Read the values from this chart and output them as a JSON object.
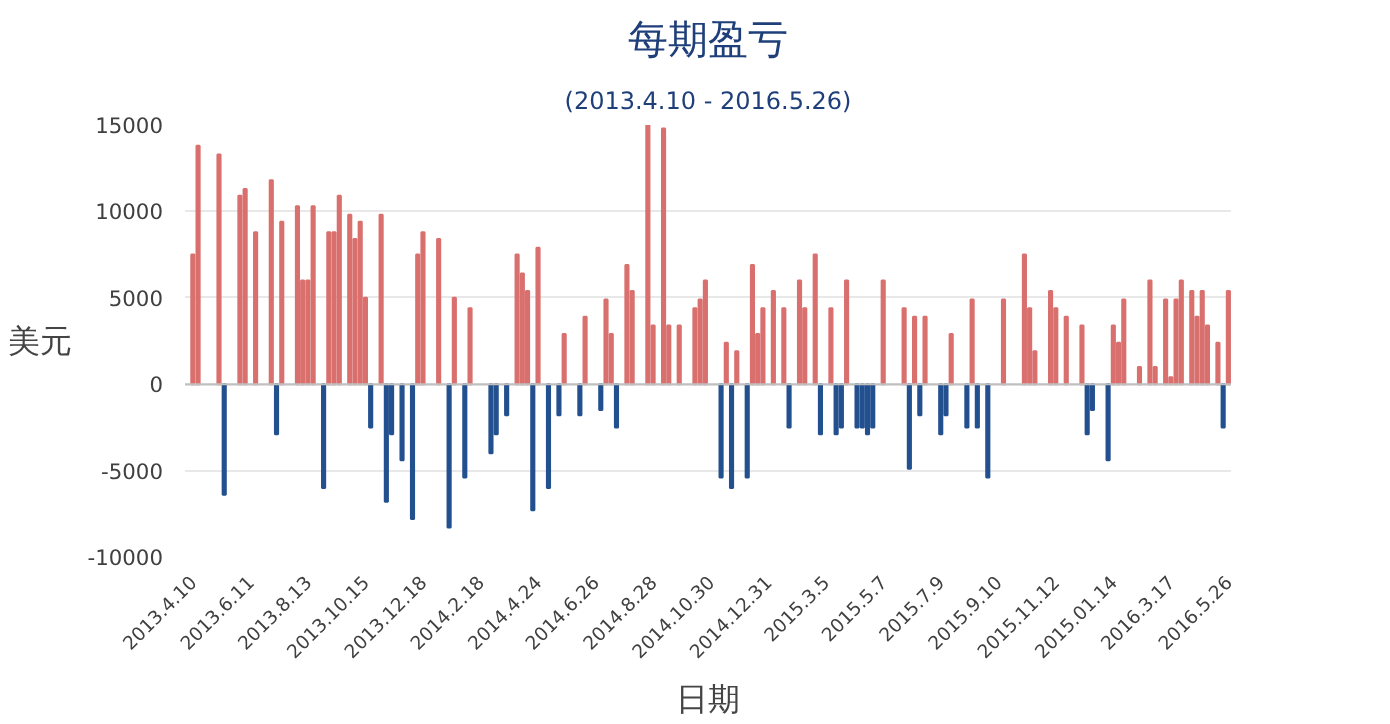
{
  "chart_data": {
    "type": "bar",
    "title": "每期盈亏",
    "subtitle": "(2013.4.10 - 2016.5.26)",
    "xlabel": "日期",
    "ylabel": "美元",
    "categories": [
      "2013.4.10",
      null,
      null,
      null,
      null,
      null,
      null,
      null,
      null,
      null,
      null,
      "2013.6.11",
      null,
      null,
      null,
      null,
      null,
      null,
      null,
      null,
      null,
      null,
      "2013.8.13",
      null,
      null,
      null,
      null,
      null,
      null,
      null,
      null,
      null,
      null,
      "2013.10.15",
      null,
      null,
      null,
      null,
      null,
      null,
      null,
      null,
      null,
      null,
      "2013.12.18",
      null,
      null,
      null,
      null,
      null,
      null,
      null,
      null,
      null,
      null,
      "2014.2.18",
      null,
      null,
      null,
      null,
      null,
      null,
      null,
      null,
      null,
      null,
      "2014.4.24",
      null,
      null,
      null,
      null,
      null,
      null,
      null,
      null,
      null,
      null,
      "2014.6.26",
      null,
      null,
      null,
      null,
      null,
      null,
      null,
      null,
      null,
      null,
      "2014.8.28",
      null,
      null,
      null,
      null,
      null,
      null,
      null,
      null,
      null,
      null,
      "2014.10.30",
      null,
      null,
      null,
      null,
      null,
      null,
      null,
      null,
      null,
      null,
      "2014.12.31",
      null,
      null,
      null,
      null,
      null,
      null,
      null,
      null,
      null,
      null,
      "2015.3.5",
      null,
      null,
      null,
      null,
      null,
      null,
      null,
      null,
      null,
      null,
      "2015.5.7",
      null,
      null,
      null,
      null,
      null,
      null,
      null,
      null,
      null,
      null,
      "2015.7.9",
      null,
      null,
      null,
      null,
      null,
      null,
      null,
      null,
      null,
      null,
      "2015.9.10",
      null,
      null,
      null,
      null,
      null,
      null,
      null,
      null,
      null,
      null,
      "2015.11.12",
      null,
      null,
      null,
      null,
      null,
      null,
      null,
      null,
      null,
      null,
      "2015.01.14",
      null,
      null,
      null,
      null,
      null,
      null,
      null,
      null,
      null,
      null,
      "2016.3.17",
      null,
      null,
      null,
      null,
      null,
      null,
      null,
      null,
      null,
      null,
      "2016.5.26"
    ],
    "values": [
      7500,
      13800,
      null,
      null,
      null,
      13300,
      -6400,
      null,
      null,
      10900,
      11300,
      null,
      8800,
      null,
      null,
      11800,
      -2900,
      9400,
      null,
      null,
      10300,
      6000,
      6000,
      10300,
      null,
      -6000,
      8800,
      8800,
      10900,
      null,
      9800,
      8400,
      9400,
      5000,
      -2500,
      null,
      9800,
      -6800,
      -2900,
      null,
      -4400,
      null,
      -7800,
      7500,
      8800,
      null,
      null,
      8400,
      null,
      -8300,
      5000,
      null,
      -5400,
      4400,
      null,
      null,
      null,
      -4000,
      -2900,
      null,
      -1800,
      null,
      7500,
      6400,
      5400,
      -7300,
      7900,
      null,
      -6000,
      null,
      -1800,
      2900,
      null,
      null,
      -1800,
      3900,
      null,
      null,
      -1500,
      4900,
      2900,
      -2500,
      null,
      6900,
      5400,
      null,
      null,
      15000,
      3400,
      null,
      14800,
      3400,
      null,
      3400,
      null,
      null,
      4400,
      4900,
      6000,
      null,
      null,
      -5400,
      2400,
      -6000,
      1900,
      null,
      -5400,
      6900,
      2900,
      4400,
      null,
      5400,
      null,
      4400,
      -2500,
      null,
      6000,
      4400,
      null,
      7500,
      -2900,
      null,
      4400,
      -2900,
      -2500,
      6000,
      null,
      -2500,
      -2500,
      -2900,
      -2500,
      null,
      6000,
      null,
      null,
      null,
      4400,
      -4900,
      3900,
      -1800,
      3900,
      null,
      null,
      -2900,
      -1800,
      2900,
      null,
      null,
      -2500,
      4900,
      -2500,
      null,
      -5400,
      null,
      null,
      4900,
      null,
      null,
      null,
      7500,
      4400,
      1900,
      null,
      null,
      5400,
      4400,
      null,
      3900,
      null,
      null,
      3400,
      -2900,
      -1500,
      null,
      null,
      -4400,
      3400,
      2400,
      4900,
      null,
      null,
      1000,
      null,
      6000,
      1000,
      null,
      4900,
      400,
      4900,
      6000,
      null,
      5400,
      3900,
      5400,
      3400,
      null,
      2400,
      -2500,
      5400
    ],
    "colors": [
      "#d9706e",
      "#d9706e",
      null,
      null,
      null,
      "#d9706e",
      "#23508f",
      null,
      null,
      "#d9706e",
      "#d9706e",
      null,
      "#d9706e",
      null,
      null,
      "#d9706e",
      "#23508f",
      "#d9706e",
      null,
      null,
      "#d9706e",
      "#d9706e",
      "#d9706e",
      "#d9706e",
      null,
      "#23508f",
      "#d9706e",
      "#d9706e",
      "#d9706e",
      null,
      "#d9706e",
      "#d9706e",
      "#d9706e",
      "#d9706e",
      "#23508f",
      null,
      "#d9706e",
      "#23508f",
      "#23508f",
      null,
      "#23508f",
      null,
      "#23508f",
      "#d9706e",
      "#d9706e",
      null,
      null,
      "#d9706e",
      null,
      "#23508f",
      "#d9706e",
      null,
      "#23508f",
      "#d9706e",
      null,
      null,
      null,
      "#23508f",
      "#23508f",
      null,
      "#23508f",
      null,
      "#d9706e",
      "#d9706e",
      "#d9706e",
      "#23508f",
      "#d9706e",
      null,
      "#23508f",
      null,
      "#23508f",
      "#d9706e",
      null,
      null,
      "#23508f",
      "#d9706e",
      null,
      null,
      "#23508f",
      "#d9706e",
      "#d9706e",
      "#23508f",
      null,
      "#d9706e",
      "#d9706e",
      null,
      null,
      "#d9706e",
      "#d9706e",
      null,
      "#d9706e",
      "#d9706e",
      null,
      "#d9706e",
      null,
      null,
      "#d9706e",
      "#d9706e",
      "#d9706e",
      null,
      null,
      "#23508f",
      "#d9706e",
      "#23508f",
      "#d9706e",
      null,
      "#23508f",
      "#d9706e",
      "#d9706e",
      "#d9706e",
      null,
      "#d9706e",
      null,
      "#d9706e",
      "#23508f",
      null,
      "#d9706e",
      "#d9706e",
      null,
      "#d9706e",
      "#23508f",
      null,
      "#d9706e",
      "#23508f",
      "#23508f",
      "#d9706e",
      null,
      "#23508f",
      "#23508f",
      "#23508f",
      "#23508f",
      null,
      "#d9706e",
      null,
      null,
      null,
      "#d9706e",
      "#23508f",
      "#d9706e",
      "#23508f",
      "#d9706e",
      null,
      null,
      "#23508f",
      "#23508f",
      "#d9706e",
      null,
      null,
      "#23508f",
      "#d9706e",
      "#23508f",
      null,
      "#23508f",
      null,
      null,
      "#d9706e",
      null,
      null,
      null,
      "#d9706e",
      "#d9706e",
      "#d9706e",
      null,
      null,
      "#d9706e",
      "#d9706e",
      null,
      "#d9706e",
      null,
      null,
      "#d9706e",
      "#23508f",
      "#23508f",
      null,
      null,
      "#23508f",
      "#d9706e",
      "#d9706e",
      "#d9706e",
      null,
      null,
      "#d9706e",
      null,
      "#d9706e",
      "#d9706e",
      null,
      "#d9706e",
      "#d9706e",
      "#d9706e",
      "#d9706e",
      null,
      "#d9706e",
      "#d9706e",
      "#d9706e",
      "#d9706e",
      null,
      "#d9706e",
      "#23508f",
      "#d9706e"
    ],
    "ylim": [
      -10000,
      15000
    ],
    "yticks": [
      -10000,
      -5000,
      0,
      5000,
      10000,
      15000
    ],
    "grid": "y"
  }
}
